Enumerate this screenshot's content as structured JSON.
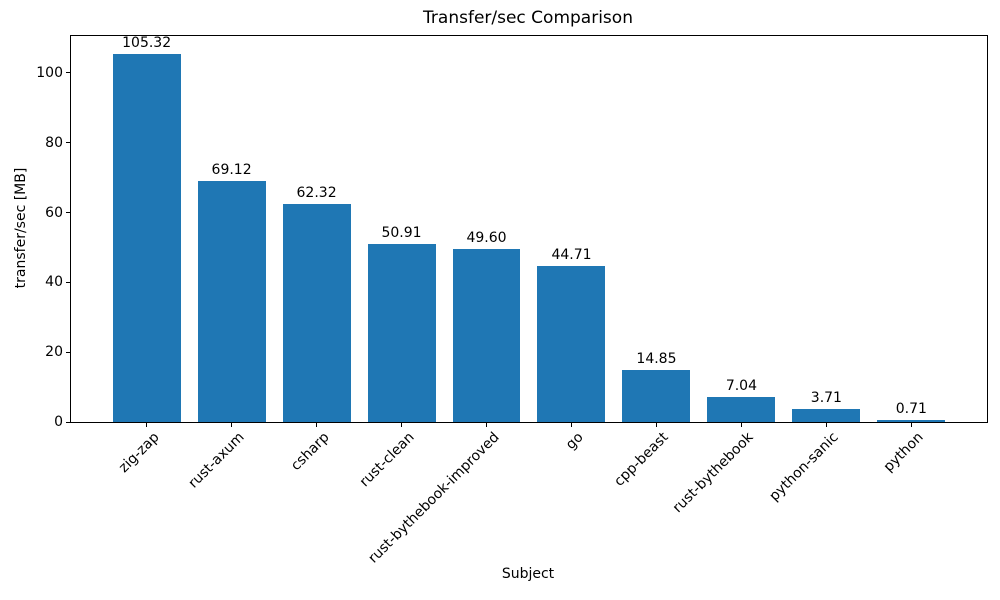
{
  "chart_data": {
    "type": "bar",
    "title": "Transfer/sec Comparison",
    "xlabel": "Subject",
    "ylabel": "transfer/sec [MB]",
    "categories": [
      "zig-zap",
      "rust-axum",
      "csharp",
      "rust-clean",
      "rust-bythebook-improved",
      "go",
      "cpp-beast",
      "rust-bythebook",
      "python-sanic",
      "python"
    ],
    "values": [
      105.32,
      69.12,
      62.32,
      50.91,
      49.6,
      44.71,
      14.85,
      7.04,
      3.71,
      0.71
    ],
    "value_labels": [
      "105.32",
      "69.12",
      "62.32",
      "50.91",
      "49.60",
      "44.71",
      "14.85",
      "7.04",
      "3.71",
      "0.71"
    ],
    "yticks": [
      0,
      20,
      40,
      60,
      80,
      100
    ],
    "ylim": [
      0,
      110.586
    ],
    "bar_width_fraction": 0.8,
    "x_label_rotation_deg": 45,
    "grid": false,
    "legend": "none",
    "colors": {
      "bar": "#1f77b4",
      "text": "#000000",
      "spine": "#000000",
      "background": "#ffffff"
    }
  }
}
